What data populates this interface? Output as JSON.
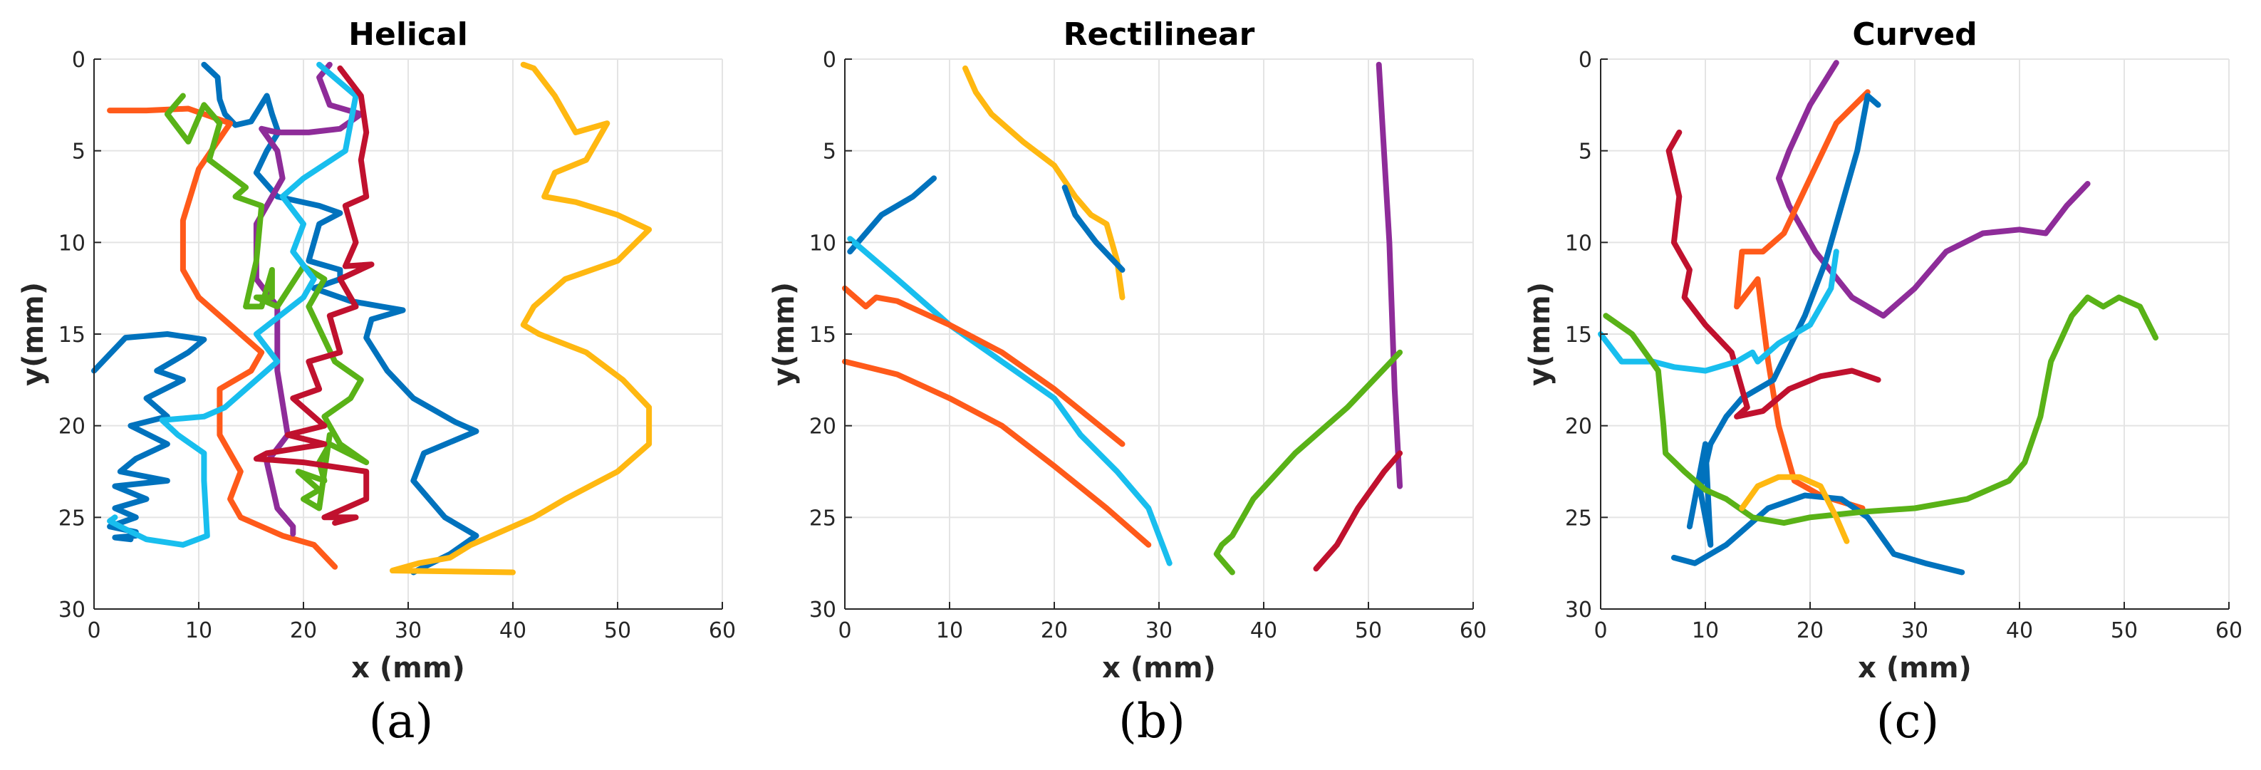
{
  "colors": {
    "blue": "#0072BD",
    "orange": "#FF5A1A",
    "yellow": "#FFB811",
    "purple": "#8E2C99",
    "green": "#59B217",
    "cyan": "#18BEEE",
    "red": "#C0112E"
  },
  "chart_data": [
    {
      "type": "line",
      "title": "Helical",
      "panel_label": "(a)",
      "xlabel": "x (mm)",
      "ylabel": "y(mm)",
      "xlim": [
        0,
        60
      ],
      "ylim": [
        0,
        30
      ],
      "y_reversed": true,
      "xticks": [
        "0",
        "10",
        "20",
        "30",
        "40",
        "50",
        "60"
      ],
      "yticks": [
        "0",
        "5",
        "10",
        "15",
        "20",
        "25",
        "30"
      ],
      "grid": true,
      "series": [
        {
          "name": "blue-1",
          "color": "blue",
          "x": [
            10.5,
            11.8,
            12,
            12.5,
            13.5,
            15,
            16.5,
            17,
            17.6,
            16.5,
            15.5,
            17.5,
            21.5,
            23.5,
            21.5,
            20.5,
            23.5,
            23.5,
            21,
            24.5,
            27.5,
            29.5,
            26.5,
            26,
            28,
            30.5,
            34.5,
            36.5,
            31.5,
            30.5,
            33.5,
            36.5,
            34,
            30.5
          ],
          "y": [
            0.3,
            1,
            2.2,
            3,
            3.6,
            3.4,
            2,
            3,
            4,
            5,
            6.2,
            7.5,
            8,
            8.4,
            9,
            11,
            11.5,
            12,
            12.5,
            13.2,
            13.5,
            13.7,
            14.2,
            15.2,
            17,
            18.5,
            19.8,
            20.3,
            21.5,
            23,
            25,
            26,
            27,
            28
          ]
        },
        {
          "name": "blue-2",
          "color": "blue",
          "x": [
            0,
            3,
            7,
            10.5,
            9,
            6,
            8.5,
            5,
            7,
            3.5,
            7,
            4,
            2.5,
            7,
            2,
            5,
            2,
            4,
            1.5,
            4,
            4,
            2,
            3.5
          ],
          "y": [
            17,
            15.2,
            15,
            15.3,
            16,
            17,
            17.5,
            18.5,
            19.5,
            20,
            21,
            21.8,
            22.5,
            23,
            23.3,
            24,
            24.5,
            25,
            25.5,
            25.8,
            26,
            26.1,
            26.2
          ]
        },
        {
          "name": "orange",
          "color": "orange",
          "x": [
            1.5,
            5,
            9,
            13,
            10,
            8.5,
            8.5,
            10,
            13,
            16,
            15,
            12,
            12,
            14,
            13,
            14,
            18,
            21,
            23
          ],
          "y": [
            2.8,
            2.8,
            2.7,
            3.5,
            6,
            8.8,
            11.5,
            13,
            14.5,
            16,
            17,
            18,
            20.5,
            22.5,
            24,
            25,
            26,
            26.5,
            27.7
          ]
        },
        {
          "name": "yellow",
          "color": "yellow",
          "x": [
            41,
            42,
            44,
            46,
            49,
            47,
            44,
            43,
            46,
            50,
            53,
            50,
            45,
            42,
            41,
            42.5,
            47,
            50.5,
            53,
            53,
            50,
            45,
            42,
            38,
            36,
            34,
            31,
            28.5,
            40
          ],
          "y": [
            0.3,
            0.5,
            2,
            4,
            3.5,
            5.5,
            6.2,
            7.5,
            7.8,
            8.5,
            9.3,
            11,
            12,
            13.5,
            14.5,
            15,
            16,
            17.5,
            19,
            21,
            22.5,
            24,
            25,
            26,
            26.5,
            27.2,
            27.5,
            27.9,
            28
          ]
        },
        {
          "name": "purple",
          "color": "purple",
          "x": [
            22.5,
            21.5,
            22.5,
            25.5,
            23.5,
            20.5,
            17.5,
            16,
            17.5,
            18,
            17,
            15.5,
            15.5,
            17.5,
            17.5,
            18.5,
            16.5,
            17.5,
            19,
            19
          ],
          "y": [
            0.3,
            1,
            2.5,
            3,
            3.8,
            4,
            4,
            3.8,
            5,
            6.5,
            7.5,
            9,
            12,
            13.5,
            17,
            20.5,
            22,
            24.5,
            25.5,
            25.9
          ]
        },
        {
          "name": "green",
          "color": "green",
          "x": [
            8.5,
            7,
            9,
            10.5,
            12,
            11,
            14.5,
            13.5,
            16,
            15.5,
            14.5,
            16,
            17,
            17,
            15.5,
            17.5,
            20,
            22,
            20.5,
            23,
            25.5,
            24.5,
            22,
            23.5,
            26,
            22.5,
            21.5,
            22,
            19.5,
            21.5,
            20,
            21.5,
            22.5
          ],
          "y": [
            2,
            3,
            4.5,
            2.5,
            3.5,
            5.5,
            7,
            7.5,
            8,
            11,
            13.5,
            13.5,
            11.5,
            13,
            13,
            13.5,
            11.3,
            12,
            13.5,
            16.5,
            17.5,
            18.5,
            19.5,
            21,
            22,
            21,
            22,
            23,
            22.5,
            23.5,
            24,
            24.5,
            20.5
          ]
        },
        {
          "name": "cyan",
          "color": "cyan",
          "x": [
            21.5,
            25,
            24,
            20,
            18,
            20,
            19,
            21,
            20,
            15.5,
            17.5,
            14.5,
            12.5,
            10.5,
            6.5,
            8,
            10.5,
            10.5,
            10.8,
            8.5,
            5,
            2.5,
            1.5,
            2
          ],
          "y": [
            0.3,
            2,
            5,
            6.5,
            7.5,
            9,
            10.5,
            12,
            13,
            15,
            16.5,
            18,
            19,
            19.5,
            19.7,
            20.5,
            21.5,
            23,
            26,
            26.5,
            26.2,
            25.5,
            25.2,
            25
          ]
        },
        {
          "name": "red",
          "color": "red",
          "x": [
            23.5,
            25.5,
            26,
            25.5,
            26,
            24,
            25,
            24,
            26.5,
            23.5,
            25,
            22.5,
            23.5,
            20.5,
            21.5,
            19,
            22,
            18.5,
            22,
            16.5,
            15.5,
            20,
            26,
            26,
            22,
            25,
            23
          ],
          "y": [
            0.5,
            2,
            4,
            5.5,
            7.5,
            8,
            10,
            11.3,
            11.2,
            12,
            13.5,
            14,
            16,
            16.5,
            18,
            18.5,
            20,
            20.5,
            21,
            21.5,
            21.8,
            22,
            22.5,
            24,
            25,
            25,
            25.3
          ]
        }
      ]
    },
    {
      "type": "line",
      "title": "Rectilinear",
      "panel_label": "(b)",
      "xlabel": "x (mm)",
      "ylabel": "y(mm)",
      "xlim": [
        0,
        60
      ],
      "ylim": [
        0,
        30
      ],
      "y_reversed": true,
      "xticks": [
        "0",
        "10",
        "20",
        "30",
        "40",
        "50",
        "60"
      ],
      "yticks": [
        "0",
        "5",
        "10",
        "15",
        "20",
        "25",
        "30"
      ],
      "grid": true,
      "series": [
        {
          "name": "yellow",
          "color": "yellow",
          "x": [
            11.5,
            12.5,
            14,
            17,
            20,
            22,
            23.5,
            25,
            26,
            26.5
          ],
          "y": [
            0.5,
            1.8,
            3,
            4.5,
            5.8,
            7.5,
            8.5,
            9,
            11,
            13
          ]
        },
        {
          "name": "blue-1",
          "color": "blue",
          "x": [
            0.5,
            3.5,
            6.5,
            8.5
          ],
          "y": [
            10.5,
            8.5,
            7.5,
            6.5
          ]
        },
        {
          "name": "blue-2",
          "color": "blue",
          "x": [
            21,
            22,
            24,
            26.5
          ],
          "y": [
            7,
            8.5,
            10,
            11.5
          ]
        },
        {
          "name": "cyan",
          "color": "cyan",
          "x": [
            0.5,
            5,
            10,
            15,
            20,
            22.5,
            26,
            29,
            31
          ],
          "y": [
            9.8,
            12,
            14.5,
            16.5,
            18.5,
            20.5,
            22.5,
            24.5,
            27.5
          ]
        },
        {
          "name": "orange-1",
          "color": "orange",
          "x": [
            0,
            2,
            3,
            5,
            10,
            15,
            20,
            26.5
          ],
          "y": [
            12.5,
            13.5,
            13,
            13.2,
            14.5,
            16,
            18,
            21
          ]
        },
        {
          "name": "orange-2",
          "color": "orange",
          "x": [
            0,
            5,
            10,
            15,
            20,
            25,
            29
          ],
          "y": [
            16.5,
            17.2,
            18.5,
            20,
            22.2,
            24.5,
            26.5
          ]
        },
        {
          "name": "purple",
          "color": "purple",
          "x": [
            51,
            52,
            52.5,
            53
          ],
          "y": [
            0.3,
            10,
            18,
            23.3
          ]
        },
        {
          "name": "green",
          "color": "green",
          "x": [
            53,
            48,
            43,
            39,
            37,
            36,
            35.5,
            37
          ],
          "y": [
            16,
            19,
            21.5,
            24,
            26,
            26.5,
            27,
            28
          ]
        },
        {
          "name": "red",
          "color": "red",
          "x": [
            53,
            51.5,
            49,
            47,
            45
          ],
          "y": [
            21.5,
            22.5,
            24.5,
            26.5,
            27.8
          ]
        }
      ]
    },
    {
      "type": "line",
      "title": "Curved",
      "panel_label": "(c)",
      "xlabel": "x (mm)",
      "ylabel": "y(mm)",
      "xlim": [
        0,
        60
      ],
      "ylim": [
        0,
        30
      ],
      "y_reversed": true,
      "xticks": [
        "0",
        "10",
        "20",
        "30",
        "40",
        "50",
        "60"
      ],
      "yticks": [
        "0",
        "5",
        "10",
        "15",
        "20",
        "25",
        "30"
      ],
      "grid": true,
      "series": [
        {
          "name": "purple",
          "color": "purple",
          "x": [
            22.5,
            20,
            18,
            17,
            18,
            20.5,
            24,
            27,
            30,
            33,
            36.5,
            40,
            42.5,
            44.5,
            46.5
          ],
          "y": [
            0.2,
            2.5,
            5,
            6.5,
            8,
            10.5,
            13,
            14,
            12.5,
            10.5,
            9.5,
            9.3,
            9.5,
            8,
            6.8
          ]
        },
        {
          "name": "orange",
          "color": "orange",
          "x": [
            25.5,
            22.5,
            20,
            17.5,
            15.5,
            13.5,
            13,
            15,
            16,
            17,
            18.5,
            21,
            25
          ],
          "y": [
            1.8,
            3.5,
            6.5,
            9.5,
            10.5,
            10.5,
            13.5,
            12,
            16.5,
            20,
            23,
            23.8,
            24.5
          ]
        },
        {
          "name": "blue-1",
          "color": "blue",
          "x": [
            26.5,
            25.5,
            24.5,
            23,
            21.5,
            19.5,
            16.5,
            13.5,
            12,
            10.5,
            9.5,
            10.5,
            10,
            8.5
          ],
          "y": [
            2.5,
            2,
            5,
            8,
            11,
            14,
            17.5,
            18.5,
            19.5,
            21,
            23.5,
            26.5,
            21,
            25.5
          ]
        },
        {
          "name": "blue-2",
          "color": "blue",
          "x": [
            7,
            9,
            12,
            16,
            19.5,
            23,
            25.5,
            28,
            31,
            34.5
          ],
          "y": [
            27.2,
            27.5,
            26.5,
            24.5,
            23.8,
            24,
            25,
            27,
            27.5,
            28
          ]
        },
        {
          "name": "red",
          "color": "red",
          "x": [
            7.5,
            6.5,
            7.5,
            7,
            8.5,
            8,
            10,
            12.5,
            14,
            13,
            15.5,
            18,
            21,
            24,
            26.5
          ],
          "y": [
            4,
            5,
            7.5,
            10,
            11.5,
            13,
            14.5,
            16,
            19,
            19.5,
            19.2,
            18,
            17.3,
            17,
            17.5
          ]
        },
        {
          "name": "cyan",
          "color": "cyan",
          "x": [
            0,
            2,
            5,
            7,
            10,
            13,
            14.5,
            15,
            17,
            20,
            22,
            22.5
          ],
          "y": [
            15,
            16.5,
            16.5,
            16.8,
            17,
            16.5,
            16,
            16.5,
            15.5,
            14.5,
            12.5,
            10.5
          ]
        },
        {
          "name": "green",
          "color": "green",
          "x": [
            0.5,
            3,
            5.5,
            6,
            6.2,
            8,
            10,
            12,
            14.5,
            17.5,
            20,
            25,
            30,
            35,
            39,
            40.5,
            42,
            43,
            45,
            46.5,
            48,
            49.5,
            51.5,
            53
          ],
          "y": [
            14,
            15,
            17,
            20,
            21.5,
            22.5,
            23.5,
            24,
            25,
            25.3,
            25,
            24.7,
            24.5,
            24,
            23,
            22,
            19.5,
            16.5,
            14,
            13,
            13.5,
            13,
            13.5,
            15.2
          ]
        },
        {
          "name": "yellow",
          "color": "yellow",
          "x": [
            13.5,
            15,
            17,
            19,
            21,
            22.5,
            23.5
          ],
          "y": [
            24.5,
            23.3,
            22.8,
            22.8,
            23.3,
            25,
            26.3
          ]
        }
      ]
    }
  ]
}
